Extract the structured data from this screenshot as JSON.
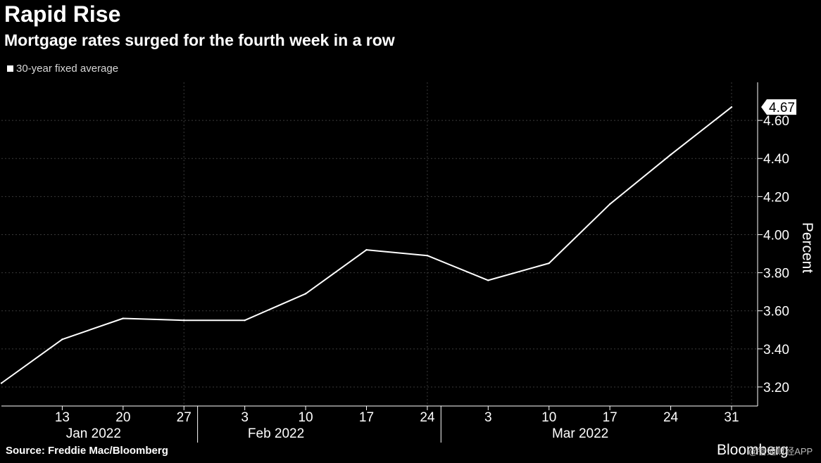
{
  "title": "Rapid Rise",
  "subtitle": "Mortgage rates surged for the fourth week in a row",
  "source": "Source: Freddie Mac/Bloomberg",
  "brand": "Bloomberg",
  "watermark": "@智通财经APP",
  "colors": {
    "background": "#000000",
    "line": "#ffffff",
    "grid": "#3a3a3a"
  },
  "chart_data": {
    "type": "line",
    "title": "Rapid Rise",
    "subtitle": "Mortgage rates surged for the fourth week in a row",
    "ylabel": "Percent",
    "ylim": [
      3.1,
      4.8
    ],
    "yticks": [
      "3.20",
      "3.40",
      "3.60",
      "3.80",
      "4.00",
      "4.20",
      "4.40",
      "4.60"
    ],
    "yaxis_side": "right",
    "grid": true,
    "legend_position": "top-left",
    "x_tick_labels": [
      "13",
      "20",
      "27",
      "3",
      "10",
      "17",
      "24",
      "3",
      "10",
      "17",
      "24",
      "31"
    ],
    "x_ticks": [
      "2022-01-13",
      "2022-01-20",
      "2022-01-27",
      "2022-02-03",
      "2022-02-10",
      "2022-02-17",
      "2022-02-24",
      "2022-03-03",
      "2022-03-10",
      "2022-03-17",
      "2022-03-24",
      "2022-03-31"
    ],
    "x_months": [
      {
        "label": "Jan 2022",
        "center": "2022-01-20"
      },
      {
        "label": "Feb 2022",
        "center": "2022-02-10"
      },
      {
        "label": "Mar 2022",
        "center": "2022-03-17"
      }
    ],
    "x_range": [
      "2022-01-06",
      "2022-04-03"
    ],
    "series": [
      {
        "name": "30-year fixed average",
        "x": [
          "2022-01-06",
          "2022-01-13",
          "2022-01-20",
          "2022-01-27",
          "2022-02-03",
          "2022-02-10",
          "2022-02-17",
          "2022-02-24",
          "2022-03-03",
          "2022-03-10",
          "2022-03-17",
          "2022-03-24",
          "2022-03-31"
        ],
        "values": [
          3.22,
          3.45,
          3.56,
          3.55,
          3.55,
          3.69,
          3.92,
          3.89,
          3.76,
          3.85,
          4.16,
          4.42,
          4.67
        ]
      }
    ],
    "last_value_label": "4.67"
  }
}
